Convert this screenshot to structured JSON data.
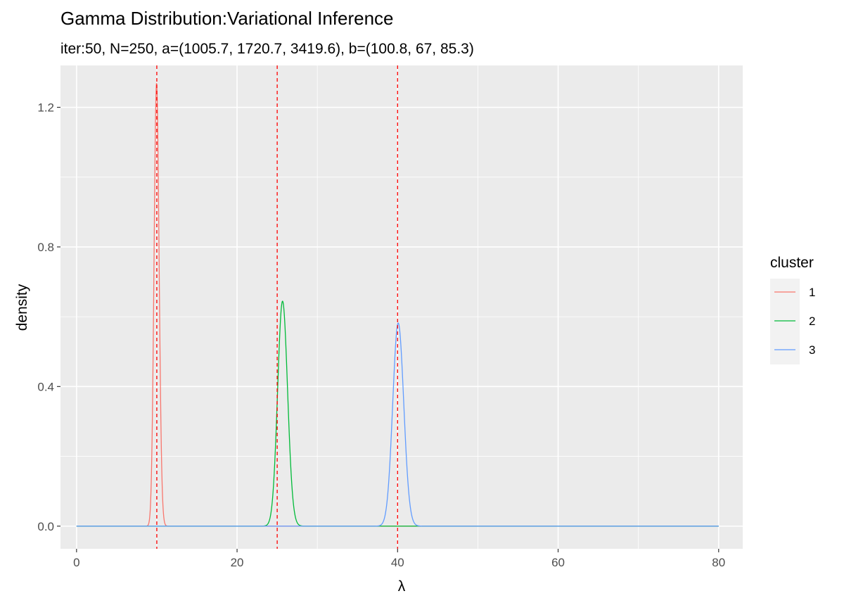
{
  "chart_data": {
    "type": "line",
    "title": "Gamma Distribution:Variational Inference",
    "subtitle": "iter:50, N=250, a=(1005.7, 1720.7, 3419.6), b=(100.8, 67, 85.3)",
    "xlabel": "λ",
    "ylabel": "density",
    "xlim": [
      -2,
      83
    ],
    "ylim": [
      -0.065,
      1.32
    ],
    "x_ticks": [
      0,
      20,
      40,
      60,
      80
    ],
    "x_tick_labels": [
      "0",
      "20",
      "40",
      "60",
      "80"
    ],
    "y_ticks": [
      0.0,
      0.4,
      0.8,
      1.2
    ],
    "y_tick_labels": [
      "0.0",
      "0.4",
      "0.8",
      "1.2"
    ],
    "x_range": [
      0,
      80
    ],
    "grid": true,
    "legend": {
      "title": "cluster",
      "position": "right"
    },
    "series": [
      {
        "name": "1",
        "distribution": "gamma",
        "shape": 1005.7,
        "rate": 100.8,
        "peak_x": 10.0,
        "peak_density": 1.26,
        "color": "#F8766D"
      },
      {
        "name": "2",
        "distribution": "gamma",
        "shape": 1720.7,
        "rate": 67,
        "peak_x": 25.7,
        "peak_density": 0.64,
        "color": "#00BA38"
      },
      {
        "name": "3",
        "distribution": "gamma",
        "shape": 3419.6,
        "rate": 85.3,
        "peak_x": 40.1,
        "peak_density": 0.58,
        "color": "#619CFF"
      }
    ],
    "reference_lines": {
      "orientation": "vertical",
      "style": "dashed",
      "color": "#FF0000",
      "x": [
        10,
        25,
        40
      ]
    },
    "panel_background": "#EBEBEB",
    "grid_color": "#FFFFFF"
  }
}
